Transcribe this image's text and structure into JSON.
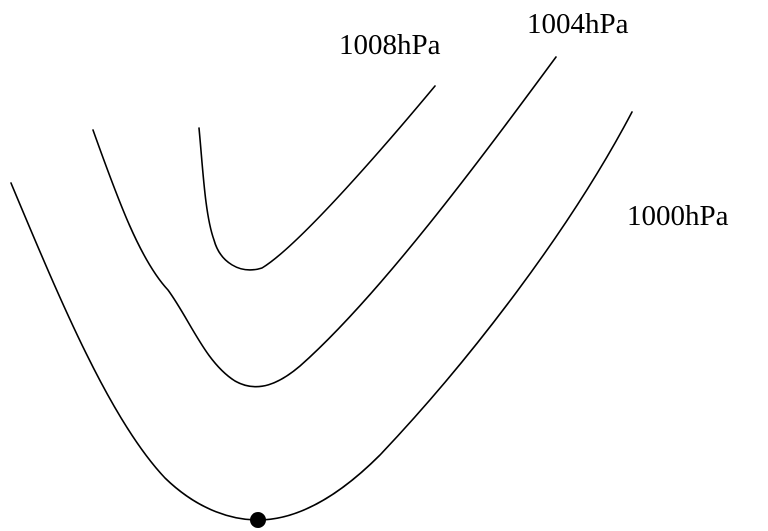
{
  "diagram": {
    "isobars": [
      {
        "id": "inner",
        "label": "1008hPa"
      },
      {
        "id": "middle",
        "label": "1004hPa"
      },
      {
        "id": "outer",
        "label": "1000hPa"
      }
    ],
    "colors": {
      "line": "#000000",
      "point": "#000000",
      "background": "#ffffff"
    }
  }
}
